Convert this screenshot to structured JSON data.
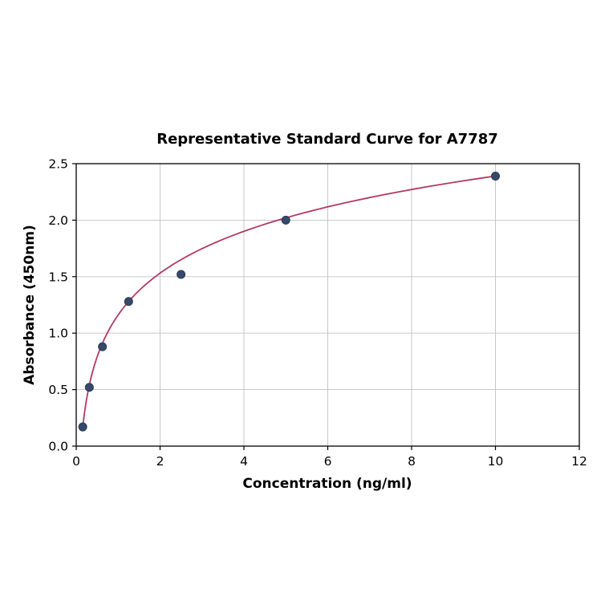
{
  "chart_data": {
    "type": "scatter",
    "title": "Representative Standard Curve for A7787",
    "xlabel": "Concentration (ng/ml)",
    "ylabel": "Absorbance (450nm)",
    "xlim": [
      0,
      12
    ],
    "ylim": [
      0,
      2.5
    ],
    "xticks": [
      0,
      2,
      4,
      6,
      8,
      10,
      12
    ],
    "xtick_labels": [
      "0",
      "2",
      "4",
      "6",
      "8",
      "10",
      "12"
    ],
    "yticks": [
      0,
      0.5,
      1.0,
      1.5,
      2.0,
      2.5
    ],
    "ytick_labels": [
      "0.0",
      "0.5",
      "1.0",
      "1.5",
      "2.0",
      "2.5"
    ],
    "grid": true,
    "legend": "none",
    "points": {
      "x": [
        0.156,
        0.313,
        0.625,
        1.25,
        2.5,
        5,
        10
      ],
      "y": [
        0.17,
        0.52,
        0.88,
        1.28,
        1.52,
        2.0,
        2.39
      ]
    },
    "fit_curve": {
      "model": "logarithmic",
      "formula": "y = a + b*ln(x)",
      "a": 1.161,
      "b": 0.534,
      "x_start": 0.145,
      "x_end": 10
    },
    "colors": {
      "point": "#36496b",
      "point_edge": "#2a3a57",
      "curve": "#b23a60",
      "grid": "#c3c3c3",
      "axis": "#000000",
      "text": "#000000",
      "background": "#ffffff"
    }
  }
}
